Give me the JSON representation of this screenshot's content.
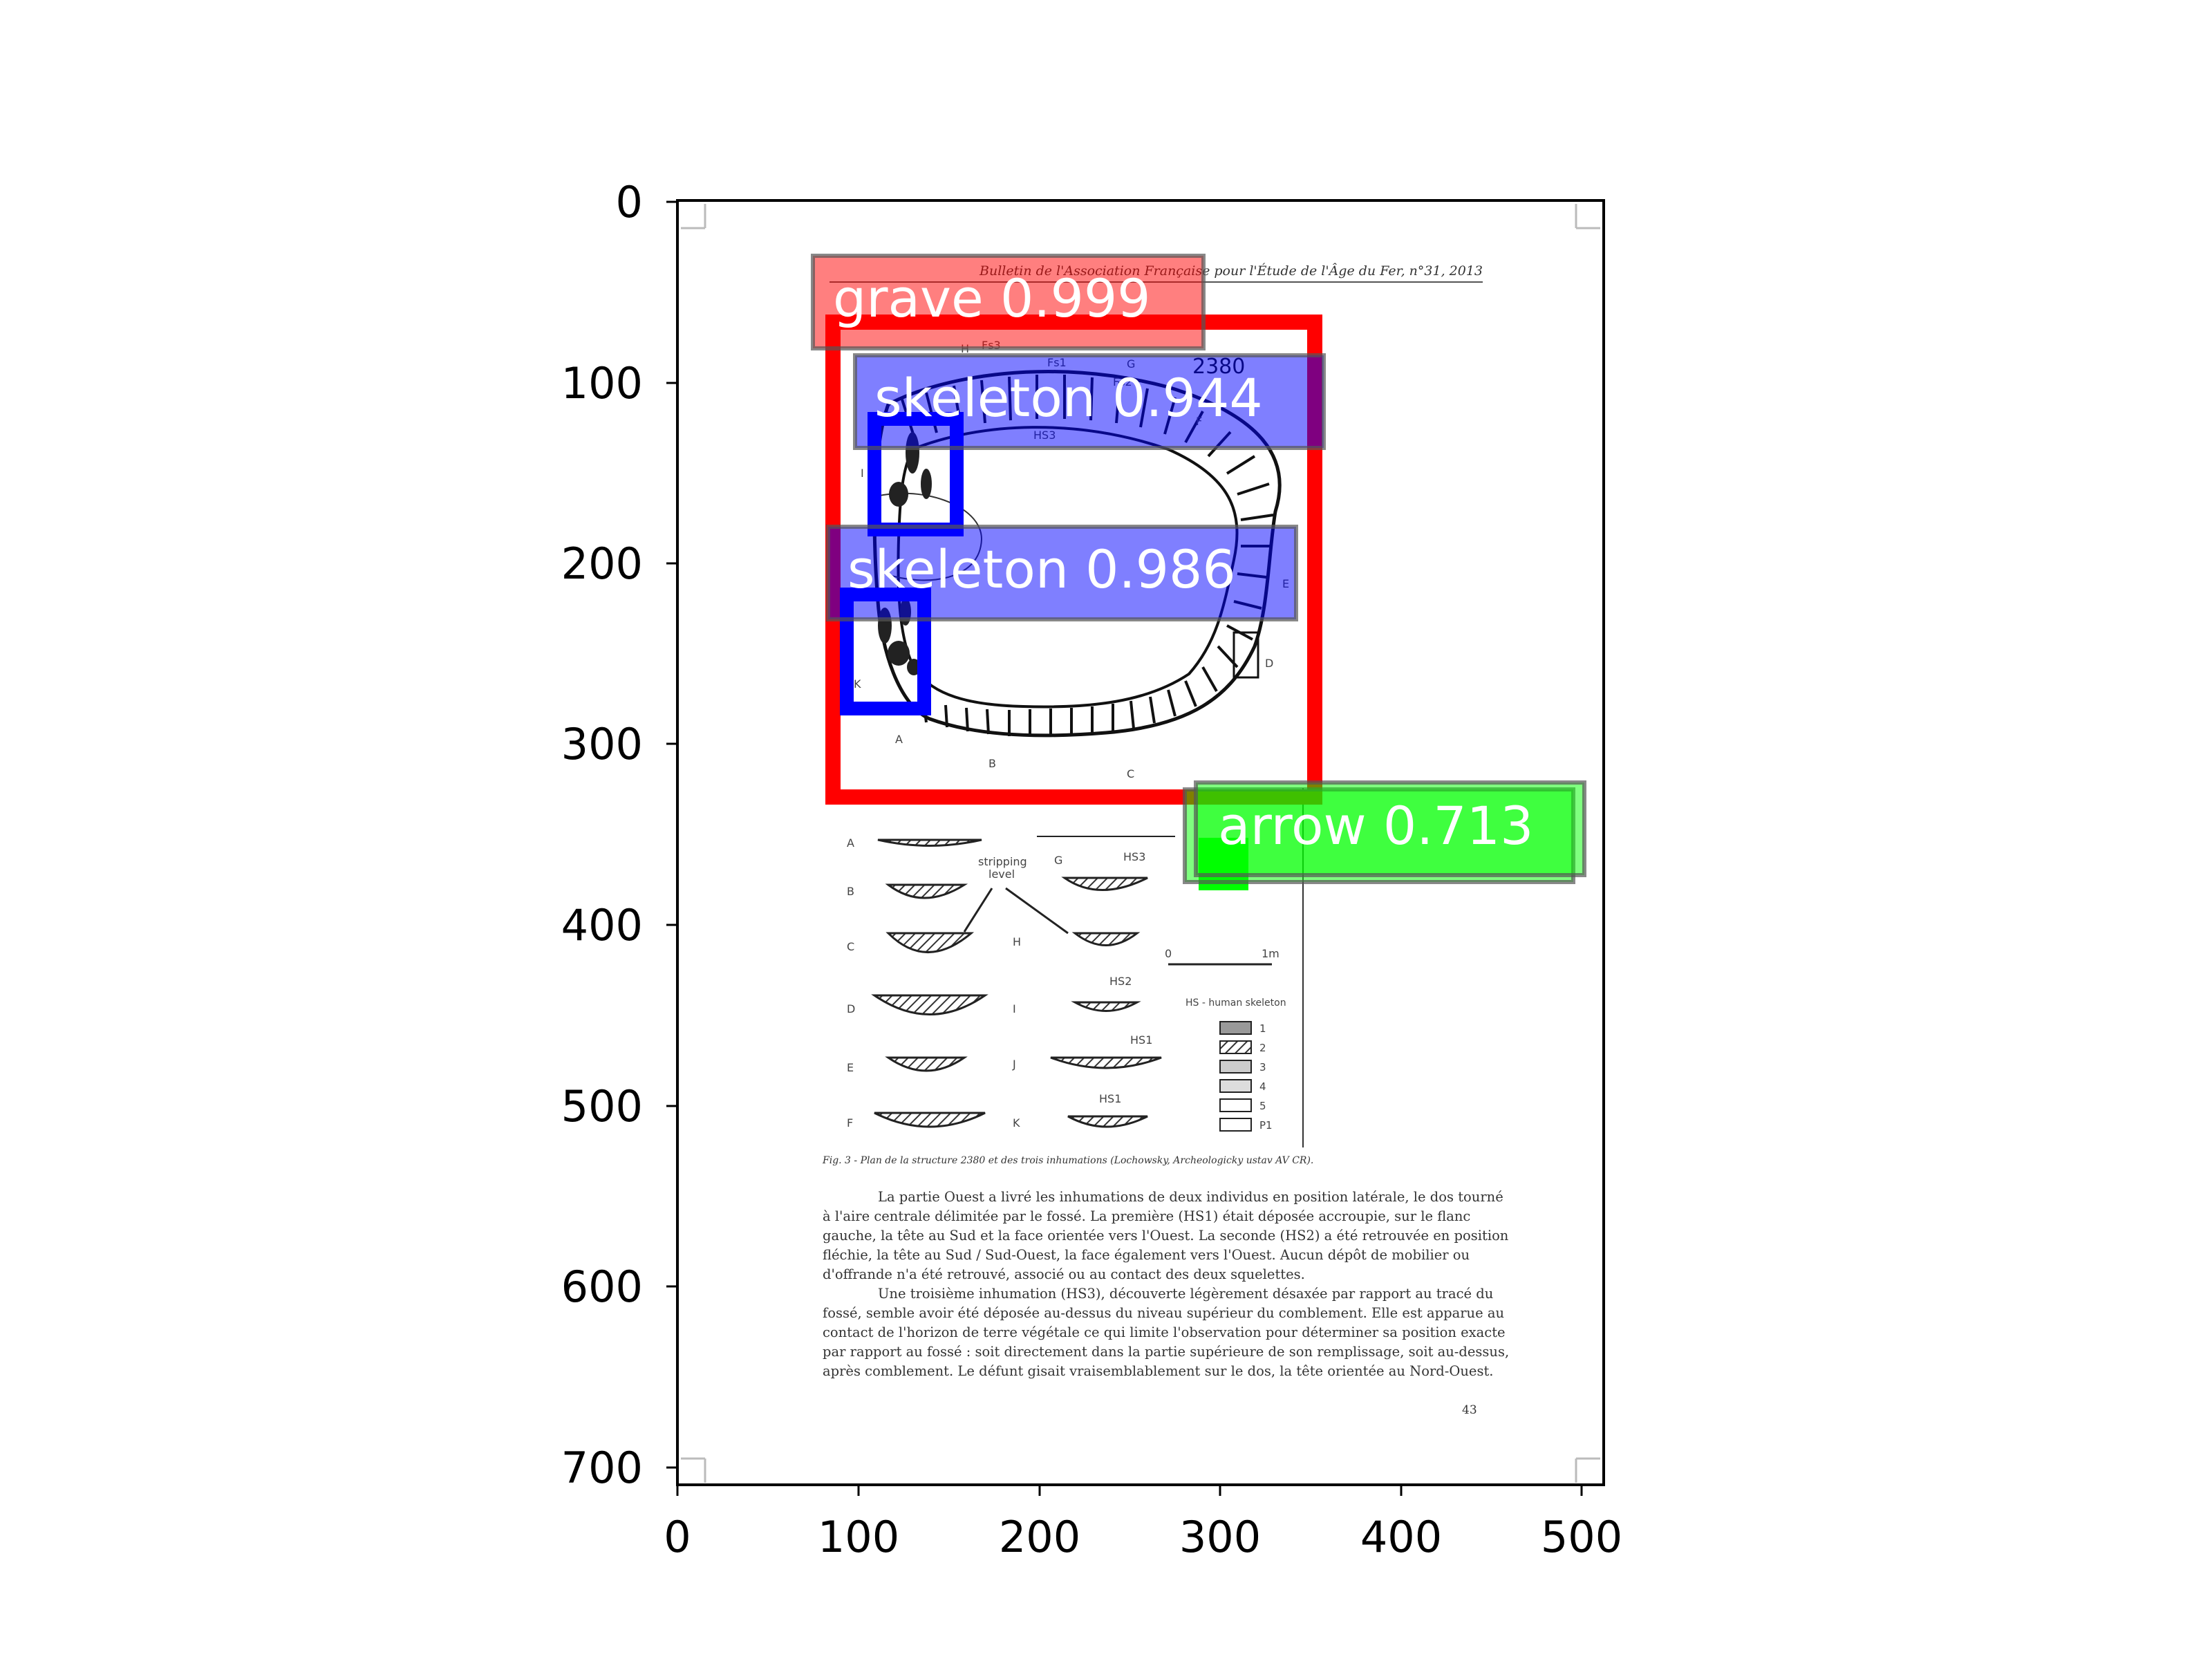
{
  "figure": {
    "x_ticks": [
      "0",
      "100",
      "200",
      "300",
      "400",
      "500"
    ],
    "y_ticks": [
      "0",
      "100",
      "200",
      "300",
      "400",
      "500",
      "600",
      "700"
    ]
  },
  "detections": [
    {
      "label": "grave 0.999",
      "color": "#ff0000"
    },
    {
      "label": "skeleton 0.944",
      "color": "#0000ff"
    },
    {
      "label": "skeleton 0.986",
      "color": "#0000ff"
    },
    {
      "label": "arrow 0.713",
      "color": "#00ff00"
    }
  ],
  "document": {
    "header": "Bulletin de l'Association Française pour l'Étude de l'Âge du Fer, n°31, 2013",
    "plan_number": "2380",
    "plan_letters": [
      "H",
      "Fs3",
      "G",
      "Fs1",
      "Fs2",
      "HS3",
      "F",
      "I",
      "E",
      "D",
      "A",
      "B",
      "C",
      "K"
    ],
    "sections_left": [
      "A",
      "B",
      "C",
      "D",
      "E",
      "F"
    ],
    "sections_mid": [
      "G",
      "H",
      "I",
      "J",
      "K"
    ],
    "section_labels": [
      "HS3",
      "HS2",
      "HS1",
      "HS1"
    ],
    "stripping_label": [
      "stripping",
      "level"
    ],
    "scale": {
      "start": "0",
      "end": "1m"
    },
    "legend_title": "HS - human skeleton",
    "legend_items": [
      "1",
      "2",
      "3",
      "4",
      "5",
      "P1"
    ],
    "caption": "Fig. 3 - Plan de la structure 2380 et des trois inhumations (Lochowsky, Archeologicky ustav AV CR).",
    "paragraphs": [
      "La partie Ouest a livré les inhumations de deux individus en position latérale, le dos tourné",
      "à l'aire centrale délimitée par le fossé. La première (HS1) était déposée accroupie, sur le flanc",
      "gauche, la tête au Sud et la face orientée vers l'Ouest. La seconde (HS2) a été retrouvée en position",
      "fléchie, la tête au Sud / Sud-Ouest, la face également vers l'Ouest. Aucun dépôt de mobilier ou",
      "d'offrande n'a été retrouvé, associé ou au contact des deux squelettes.",
      "Une troisième inhumation (HS3), découverte légèrement désaxée par rapport au tracé du",
      "fossé, semble avoir été déposée au-dessus du niveau supérieur du comblement. Elle est apparue au",
      "contact de l'horizon de terre végétale ce qui limite l'observation pour déterminer sa position exacte",
      "par rapport au fossé : soit directement dans la partie supérieure de son remplissage, soit au-dessus,",
      "après comblement. Le défunt gisait vraisemblablement sur le dos, la tête orientée au Nord-Ouest."
    ],
    "page_number": "43"
  }
}
